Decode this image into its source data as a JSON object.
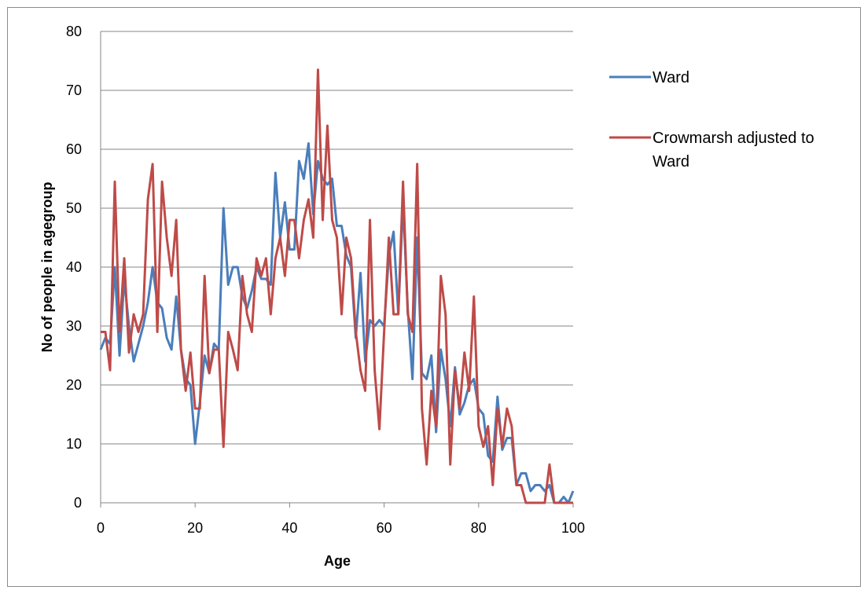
{
  "chart_data": {
    "type": "line",
    "title": "",
    "xlabel": "Age",
    "ylabel": "No of people in agegroup",
    "xlim": [
      0,
      100
    ],
    "ylim": [
      0,
      80
    ],
    "x_ticks": [
      "0",
      "20",
      "40",
      "60",
      "80",
      "100"
    ],
    "y_ticks": [
      "0",
      "10",
      "20",
      "30",
      "40",
      "50",
      "60",
      "70",
      "80"
    ],
    "grid": "horizontal",
    "legend": "right",
    "x": [
      0,
      1,
      2,
      3,
      4,
      5,
      6,
      7,
      8,
      9,
      10,
      11,
      12,
      13,
      14,
      15,
      16,
      17,
      18,
      19,
      20,
      21,
      22,
      23,
      24,
      25,
      26,
      27,
      28,
      29,
      30,
      31,
      32,
      33,
      34,
      35,
      36,
      37,
      38,
      39,
      40,
      41,
      42,
      43,
      44,
      45,
      46,
      47,
      48,
      49,
      50,
      51,
      52,
      53,
      54,
      55,
      56,
      57,
      58,
      59,
      60,
      61,
      62,
      63,
      64,
      65,
      66,
      67,
      68,
      69,
      70,
      71,
      72,
      73,
      74,
      75,
      76,
      77,
      78,
      79,
      80,
      81,
      82,
      83,
      84,
      85,
      86,
      87,
      88,
      89,
      90,
      91,
      92,
      93,
      94,
      95,
      96,
      97,
      98,
      99,
      100
    ],
    "series": [
      {
        "name": "Ward",
        "color": "#4a7ebb",
        "values": [
          26,
          28,
          27,
          40,
          25,
          38,
          30,
          24,
          27,
          30,
          34,
          40,
          34,
          33,
          28,
          26,
          35,
          26,
          21,
          20,
          10,
          17,
          25,
          22,
          27,
          26,
          50,
          37,
          40,
          40,
          35,
          33,
          36,
          40,
          38,
          38,
          37,
          56,
          45,
          51,
          43,
          43,
          58,
          55,
          61,
          49,
          58,
          55,
          54,
          55,
          47,
          47,
          42,
          40,
          28,
          39,
          24,
          31,
          30,
          31,
          30,
          42,
          46,
          32,
          51,
          33,
          21,
          45,
          22,
          21,
          25,
          12,
          26,
          21,
          13,
          23,
          15,
          17,
          20,
          21,
          16,
          15,
          8,
          7,
          18,
          9,
          11,
          11,
          3,
          5,
          5,
          2,
          3,
          3,
          2,
          3,
          0,
          0,
          1,
          0,
          2
        ]
      },
      {
        "name": "Crowmarsh adjusted to Ward",
        "color": "#be4b48",
        "values": [
          29,
          29,
          22.5,
          54.5,
          29,
          41.5,
          25.5,
          32,
          29,
          32,
          51.5,
          57.5,
          29,
          54.5,
          45,
          38.5,
          48,
          26,
          19,
          25.5,
          16,
          16,
          38.5,
          22,
          26,
          26,
          9.5,
          29,
          26,
          22.5,
          38.5,
          32,
          29,
          41.5,
          38.5,
          41.5,
          32,
          41.5,
          45,
          38.5,
          48,
          48,
          41.5,
          48,
          51.5,
          45,
          73.5,
          48,
          64,
          48,
          45,
          32,
          45,
          41.5,
          29,
          22.5,
          19,
          48,
          22.5,
          12.5,
          29,
          45,
          32,
          32,
          54.5,
          32,
          29,
          57.5,
          16,
          6.5,
          19,
          13,
          38.5,
          32,
          6.5,
          22.5,
          16,
          25.5,
          19,
          35,
          13,
          9.5,
          13,
          3,
          16,
          9.5,
          16,
          13,
          3,
          3,
          0,
          0,
          0,
          0,
          0,
          6.5,
          0,
          0,
          0,
          0,
          0
        ]
      }
    ]
  }
}
